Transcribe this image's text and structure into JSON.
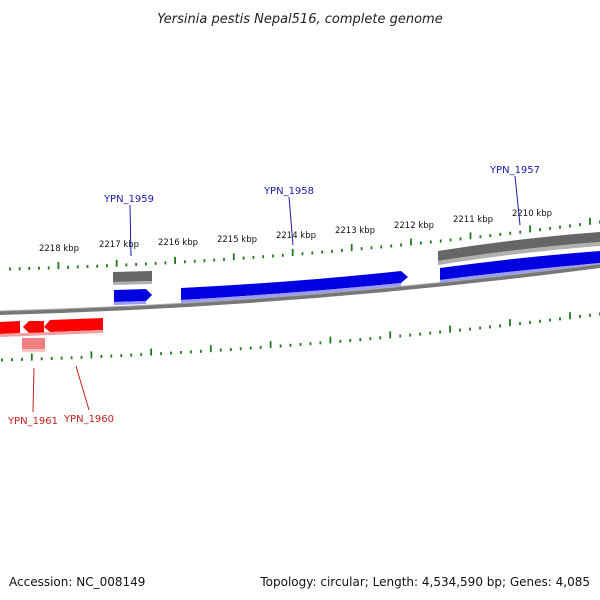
{
  "title": "Yersinia pestis Nepal516, complete genome",
  "accession": "Accession: NC_008149",
  "summary": "Topology: circular; Length: 4,534,590 bp; Genes: 4,085",
  "colors": {
    "forward_gene": "#0000e0",
    "reverse_gene": "#ff0000",
    "reverse_gene_light": "#f08080",
    "cds_gray": "#666666",
    "backbone": "#777777",
    "ticks": "#1e7a1e",
    "forward_label": "#1a1aa8",
    "reverse_label": "#c81e1e"
  },
  "ticks": [
    {
      "label": "2218 kbp"
    },
    {
      "label": "2217 kbp"
    },
    {
      "label": "2216 kbp"
    },
    {
      "label": "2215 kbp"
    },
    {
      "label": "2214 kbp"
    },
    {
      "label": "2213 kbp"
    },
    {
      "label": "2212 kbp"
    },
    {
      "label": "2211 kbp"
    },
    {
      "label": "2210 kbp"
    }
  ],
  "genes": {
    "forward": [
      {
        "name": "YPN_1959"
      },
      {
        "name": "YPN_1958"
      },
      {
        "name": "YPN_1957"
      }
    ],
    "reverse": [
      {
        "name": "YPN_1961"
      },
      {
        "name": "YPN_1960"
      }
    ]
  }
}
